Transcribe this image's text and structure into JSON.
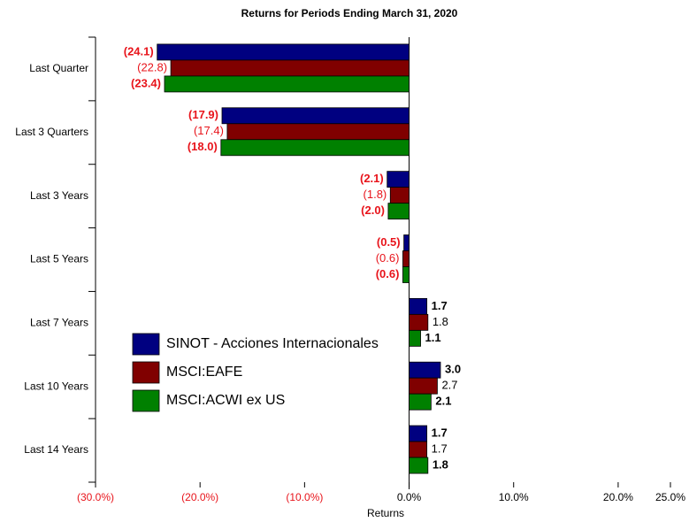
{
  "chart_data": {
    "type": "hbar",
    "title": "Returns for Periods Ending March 31, 2020",
    "x_label": "Returns",
    "categories": [
      "Last Quarter",
      "Last 3 Quarters",
      "Last 3 Years",
      "Last 5 Years",
      "Last 7 Years",
      "Last 10 Years",
      "Last 14 Years"
    ],
    "series": [
      {
        "name": "SINOT - Acciones Internacionales",
        "color": "#000080",
        "values": [
          -24.1,
          -17.9,
          -2.1,
          -0.5,
          1.7,
          3.0,
          1.7
        ],
        "value_labels": [
          "(24.1)",
          "(17.9)",
          "(2.1)",
          "(0.5)",
          "1.7",
          "3.0",
          "1.7"
        ]
      },
      {
        "name": "MSCI:EAFE",
        "color": "#800000",
        "values": [
          -22.8,
          -17.4,
          -1.8,
          -0.6,
          1.8,
          2.7,
          1.7
        ],
        "value_labels": [
          "(22.8)",
          "(17.4)",
          "(1.8)",
          "(0.6)",
          "1.8",
          "2.7",
          "1.7"
        ]
      },
      {
        "name": "MSCI:ACWI ex US",
        "color": "#008000",
        "values": [
          -23.4,
          -18.0,
          -2.0,
          -0.6,
          1.1,
          2.1,
          1.8
        ],
        "value_labels": [
          "(23.4)",
          "(18.0)",
          "(2.0)",
          "(0.6)",
          "1.1",
          "2.1",
          "1.8"
        ]
      }
    ],
    "xlim": [
      -30,
      25
    ],
    "xticks": [
      {
        "value": -30,
        "label": "(30.0%)"
      },
      {
        "value": -20,
        "label": "(20.0%)"
      },
      {
        "value": -10,
        "label": "(10.0%)"
      },
      {
        "value": 0,
        "label": "0.0%"
      },
      {
        "value": 10,
        "label": "10.0%"
      },
      {
        "value": 20,
        "label": "20.0%"
      },
      {
        "value": 25,
        "label": "25.0%"
      }
    ],
    "negative_color": "#e8141b"
  }
}
